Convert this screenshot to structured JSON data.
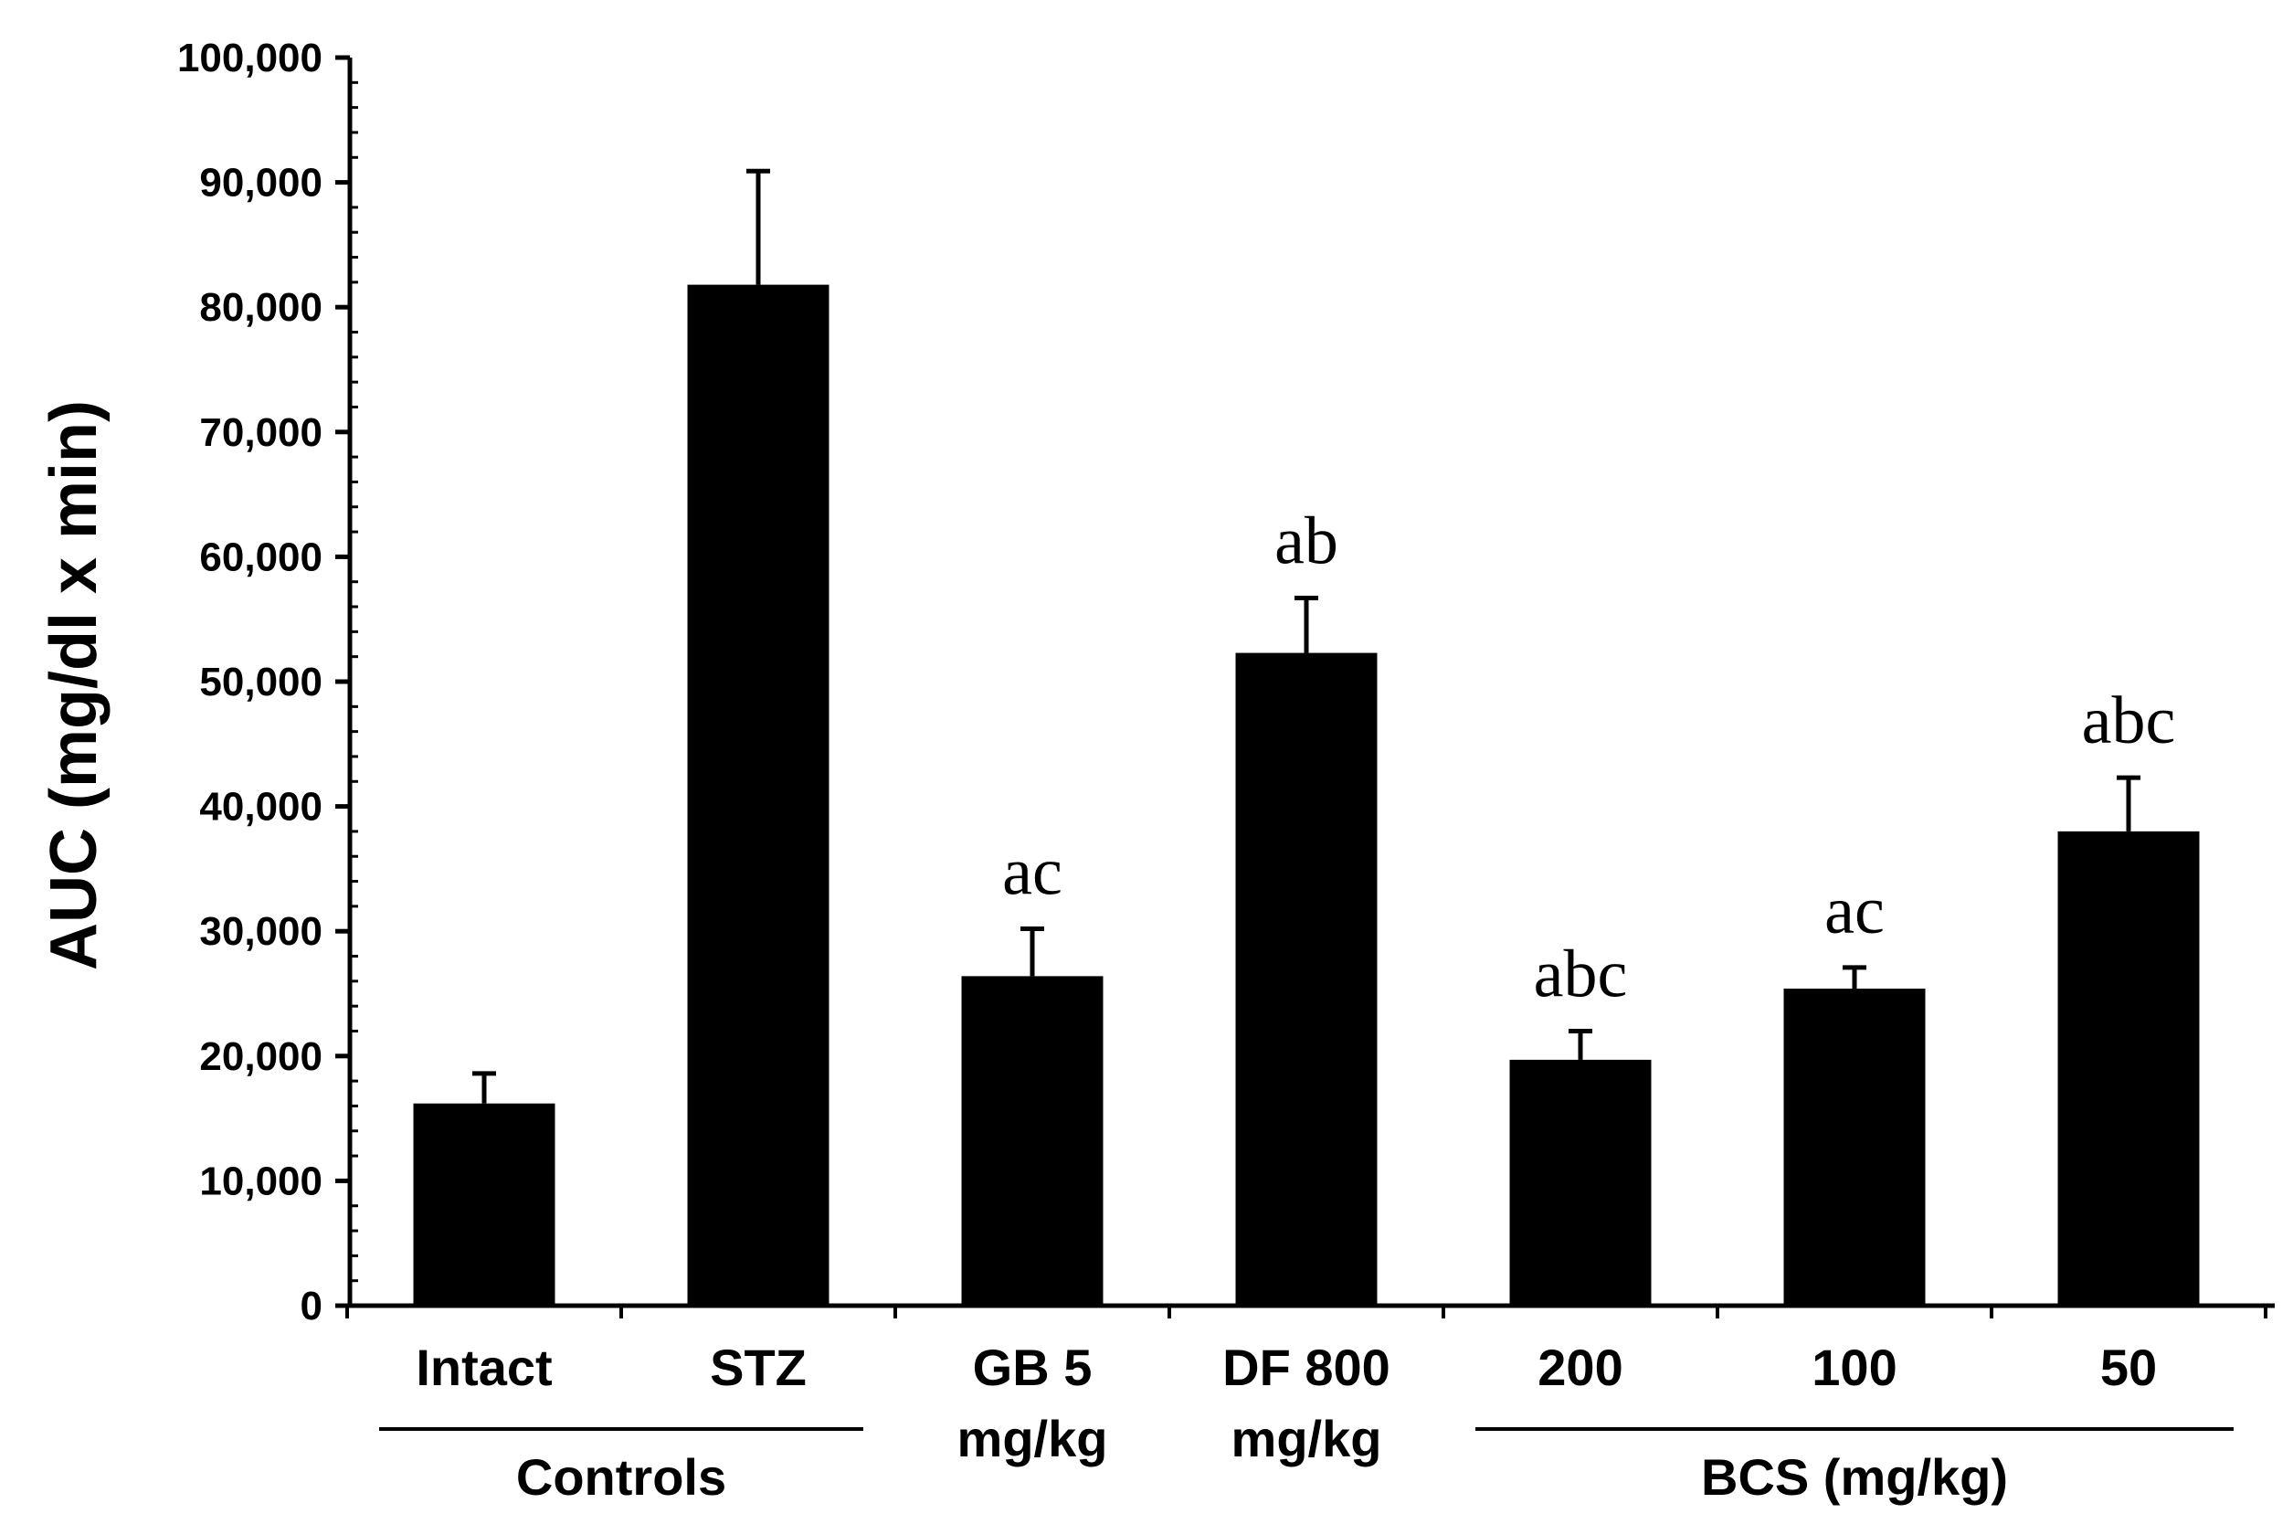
{
  "chart_data": {
    "type": "bar",
    "title": "",
    "xlabel": "",
    "ylabel": "AUC  (mg/dl x min)",
    "ylim": [
      0,
      100000
    ],
    "y_major_step": 10000,
    "y_minor_step": 2000,
    "y_ticks": [
      "0",
      "10,000",
      "20,000",
      "30,000",
      "40,000",
      "50,000",
      "60,000",
      "70,000",
      "80,000",
      "90,000",
      "100,000"
    ],
    "grid": false,
    "bar_color": "#000000",
    "categories": [
      {
        "lines": [
          "Intact"
        ]
      },
      {
        "lines": [
          "STZ"
        ]
      },
      {
        "lines": [
          "GB 5",
          "mg/kg"
        ]
      },
      {
        "lines": [
          "DF 800",
          "mg/kg"
        ]
      },
      {
        "lines": [
          "200"
        ]
      },
      {
        "lines": [
          "100"
        ]
      },
      {
        "lines": [
          "50"
        ]
      }
    ],
    "values": [
      16200,
      81800,
      26400,
      52300,
      19700,
      25400,
      38000
    ],
    "error_upper": [
      18600,
      90900,
      30200,
      56700,
      22000,
      27100,
      42300
    ],
    "significance": [
      "",
      "",
      "ac",
      "ab",
      "abc",
      "ac",
      "abc"
    ],
    "groups": [
      {
        "label": "Controls",
        "from": 0,
        "to": 1
      },
      {
        "label": "BCS (mg/kg)",
        "from": 4,
        "to": 6
      }
    ]
  }
}
